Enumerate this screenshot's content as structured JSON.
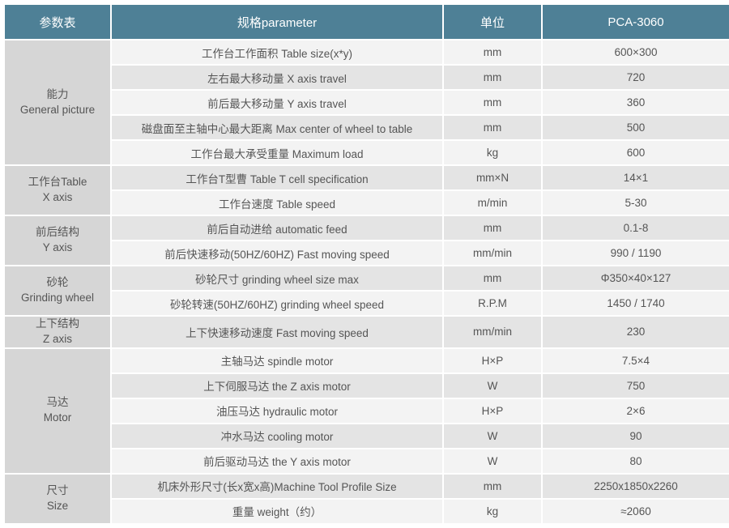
{
  "colors": {
    "header_bg": "#4e8096",
    "header_fg": "#ffffff",
    "group_bg": "#d6d6d6",
    "row_even_bg": "#f3f3f3",
    "row_odd_bg": "#e4e4e4",
    "text": "#555555"
  },
  "headers": {
    "group": "参数表",
    "param": "规格parameter",
    "unit": "单位",
    "model": "PCA-3060"
  },
  "groups": [
    {
      "label_cn": "能力",
      "label_en": "General picture",
      "rows": [
        {
          "param": "工作台工作面积 Table size(x*y)",
          "unit": "mm",
          "value": "600×300"
        },
        {
          "param": "左右最大移动量 X axis travel",
          "unit": "mm",
          "value": "720"
        },
        {
          "param": "前后最大移动量 Y axis travel",
          "unit": "mm",
          "value": "360"
        },
        {
          "param": "磁盘面至主轴中心最大距离 Max center of wheel to table",
          "unit": "mm",
          "value": "500"
        },
        {
          "param": "工作台最大承受重量 Maximum load",
          "unit": "kg",
          "value": "600"
        }
      ]
    },
    {
      "label_cn": "工作台Table",
      "label_en": "X axis",
      "rows": [
        {
          "param": "工作台T型曹 Table T cell specification",
          "unit": "mm×N",
          "value": "14×1"
        },
        {
          "param": "工作台速度 Table speed",
          "unit": "m/min",
          "value": "5-30"
        }
      ]
    },
    {
      "label_cn": "前后结构",
      "label_en": "Y axis",
      "rows": [
        {
          "param": "前后自动进给 automatic feed",
          "unit": "mm",
          "value": "0.1-8"
        },
        {
          "param": "前后快速移动(50HZ/60HZ) Fast moving speed",
          "unit": "mm/min",
          "value": "990 / 1190"
        }
      ]
    },
    {
      "label_cn": "砂轮",
      "label_en": "Grinding wheel",
      "rows": [
        {
          "param": "砂轮尺寸 grinding wheel size max",
          "unit": "mm",
          "value": "Φ350×40×127"
        },
        {
          "param": "砂轮转速(50HZ/60HZ) grinding wheel speed",
          "unit": "R.P.M",
          "value": "1450 / 1740"
        }
      ]
    },
    {
      "label_cn": "上下结构",
      "label_en": "Z axis",
      "rows": [
        {
          "param": "上下快速移动速度 Fast moving speed",
          "unit": "mm/min",
          "value": "230"
        }
      ]
    },
    {
      "label_cn": "马达",
      "label_en": "Motor",
      "rows": [
        {
          "param": "主轴马达 spindle motor",
          "unit": "H×P",
          "value": "7.5×4"
        },
        {
          "param": "上下伺服马达 the Z axis motor",
          "unit": "W",
          "value": "750"
        },
        {
          "param": "油压马达 hydraulic motor",
          "unit": "H×P",
          "value": "2×6"
        },
        {
          "param": "冲水马达 cooling motor",
          "unit": "W",
          "value": "90"
        },
        {
          "param": "前后驱动马达 the Y axis motor",
          "unit": "W",
          "value": "80"
        }
      ]
    },
    {
      "label_cn": "尺寸",
      "label_en": "Size",
      "rows": [
        {
          "param": "机床外形尺寸(长x宽x高)Machine Tool Profile Size",
          "unit": "mm",
          "value": "2250x1850x2260"
        },
        {
          "param": "重量 weight（约）",
          "unit": "kg",
          "value": "≈2060"
        }
      ]
    }
  ]
}
